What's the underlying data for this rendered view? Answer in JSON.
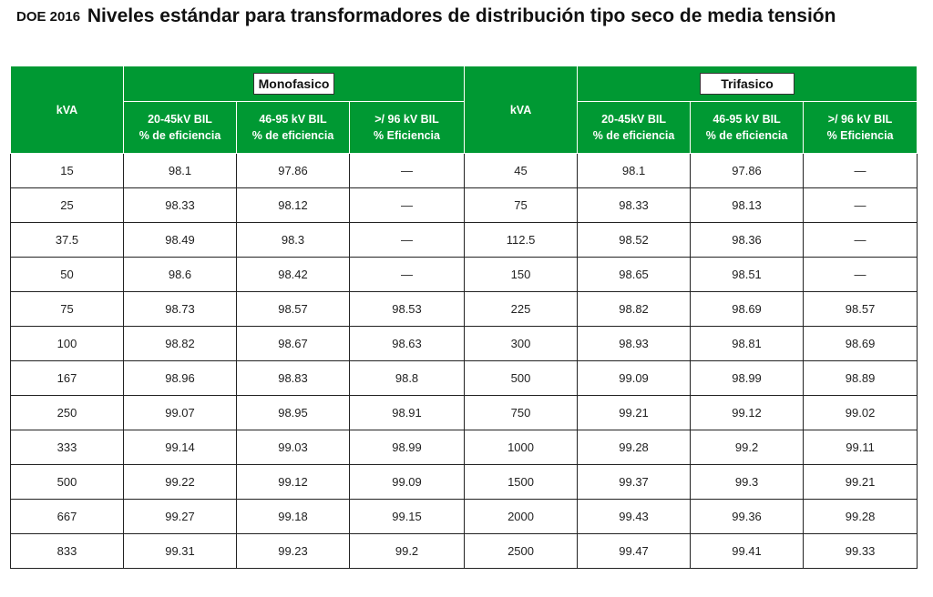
{
  "title": {
    "prefix": "DOE 2016",
    "main": "Niveles estándar para transformadores de distribución tipo seco de media tensión"
  },
  "colors": {
    "header_green": "#009933"
  },
  "table": {
    "kva_header": "kVA",
    "mono": {
      "label": "Monofasico",
      "col1": [
        "20-45kV BIL",
        "% de eficiencia"
      ],
      "col2": [
        "46-95 kV BIL",
        "% de eficiencia"
      ],
      "col3": [
        ">/ 96 kV BIL",
        "% Eficiencia"
      ]
    },
    "tri": {
      "label": "Trifasico",
      "col1": [
        "20-45kV BIL",
        "% de eficiencia"
      ],
      "col2": [
        "46-95 kV BIL",
        "% de eficiencia"
      ],
      "col3": [
        ">/ 96 kV BIL",
        "% Eficiencia"
      ]
    },
    "rows": [
      [
        "15",
        "98.1",
        "97.86",
        "—",
        "45",
        "98.1",
        "97.86",
        "—"
      ],
      [
        "25",
        "98.33",
        "98.12",
        "—",
        "75",
        "98.33",
        "98.13",
        "—"
      ],
      [
        "37.5",
        "98.49",
        "98.3",
        "—",
        "112.5",
        "98.52",
        "98.36",
        "—"
      ],
      [
        "50",
        "98.6",
        "98.42",
        "—",
        "150",
        "98.65",
        "98.51",
        "—"
      ],
      [
        "75",
        "98.73",
        "98.57",
        "98.53",
        "225",
        "98.82",
        "98.69",
        "98.57"
      ],
      [
        "100",
        "98.82",
        "98.67",
        "98.63",
        "300",
        "98.93",
        "98.81",
        "98.69"
      ],
      [
        "167",
        "98.96",
        "98.83",
        "98.8",
        "500",
        "99.09",
        "98.99",
        "98.89"
      ],
      [
        "250",
        "99.07",
        "98.95",
        "98.91",
        "750",
        "99.21",
        "99.12",
        "99.02"
      ],
      [
        "333",
        "99.14",
        "99.03",
        "98.99",
        "1000",
        "99.28",
        "99.2",
        "99.11"
      ],
      [
        "500",
        "99.22",
        "99.12",
        "99.09",
        "1500",
        "99.37",
        "99.3",
        "99.21"
      ],
      [
        "667",
        "99.27",
        "99.18",
        "99.15",
        "2000",
        "99.43",
        "99.36",
        "99.28"
      ],
      [
        "833",
        "99.31",
        "99.23",
        "99.2",
        "2500",
        "99.47",
        "99.41",
        "99.33"
      ]
    ]
  }
}
